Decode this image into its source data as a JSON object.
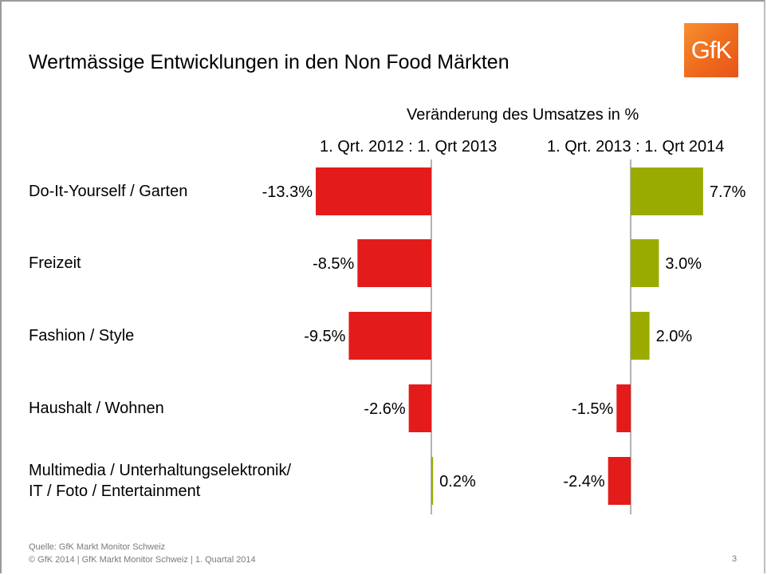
{
  "header": {
    "title": "Wertmässige Entwicklungen in den Non Food Märkten",
    "logo_text": "GfK",
    "logo_icon": "gfk-logo-icon"
  },
  "footer": {
    "source": "Quelle: GfK Markt Monitor Schweiz",
    "copyright": "© GfK 2014 | GfK Markt Monitor Schweiz | 1. Quartal 2014",
    "page_number": "3"
  },
  "colors": {
    "negative": "#e31b1b",
    "positive": "#9aab00",
    "axis": "#9a9a9a"
  },
  "chart_data": {
    "type": "bar",
    "orientation": "horizontal",
    "title": "Veränderung des Umsatzes in %",
    "categories": [
      "Do-It-Yourself / Garten",
      "Freizeit",
      "Fashion / Style",
      "Haushalt / Wohnen",
      "Multimedia / Unterhaltungselektronik/ IT / Foto / Entertainment"
    ],
    "category_lines": [
      [
        "Do-It-Yourself / Garten"
      ],
      [
        "Freizeit"
      ],
      [
        "Fashion / Style"
      ],
      [
        "Haushalt / Wohnen"
      ],
      [
        "Multimedia / Unterhaltungselektronik/",
        "IT / Foto / Entertainment"
      ]
    ],
    "series": [
      {
        "name": "1. Qrt. 2012 : 1. Qrt 2013",
        "values": [
          -13.3,
          -8.5,
          -9.5,
          -2.6,
          0.2
        ],
        "labels": [
          "-13.3%",
          "-8.5%",
          "-9.5%",
          "-2.6%",
          "0.2%"
        ]
      },
      {
        "name": "1. Qrt. 2013 : 1. Qrt 2014",
        "values": [
          7.7,
          3.0,
          2.0,
          -1.5,
          -2.4
        ],
        "labels": [
          "7.7%",
          "3.0%",
          "2.0%",
          "-1.5%",
          "-2.4%"
        ]
      }
    ],
    "xlabel": "",
    "ylabel": "",
    "grid": false,
    "legend": "none"
  }
}
